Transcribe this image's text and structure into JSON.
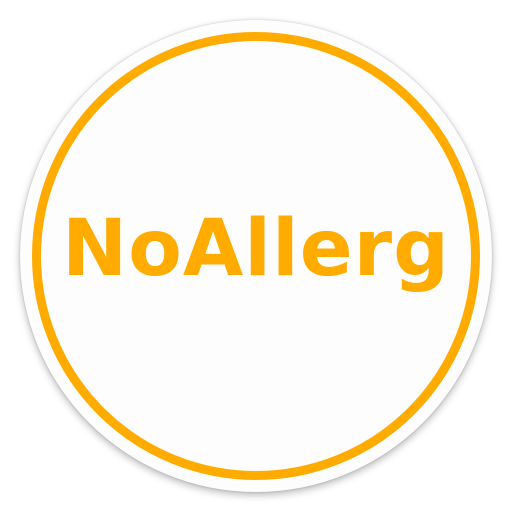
{
  "app_icon": {
    "wordmark": "NoAllerg",
    "accent_color": "#FFAB00",
    "background_color": "#FDFDFD"
  }
}
